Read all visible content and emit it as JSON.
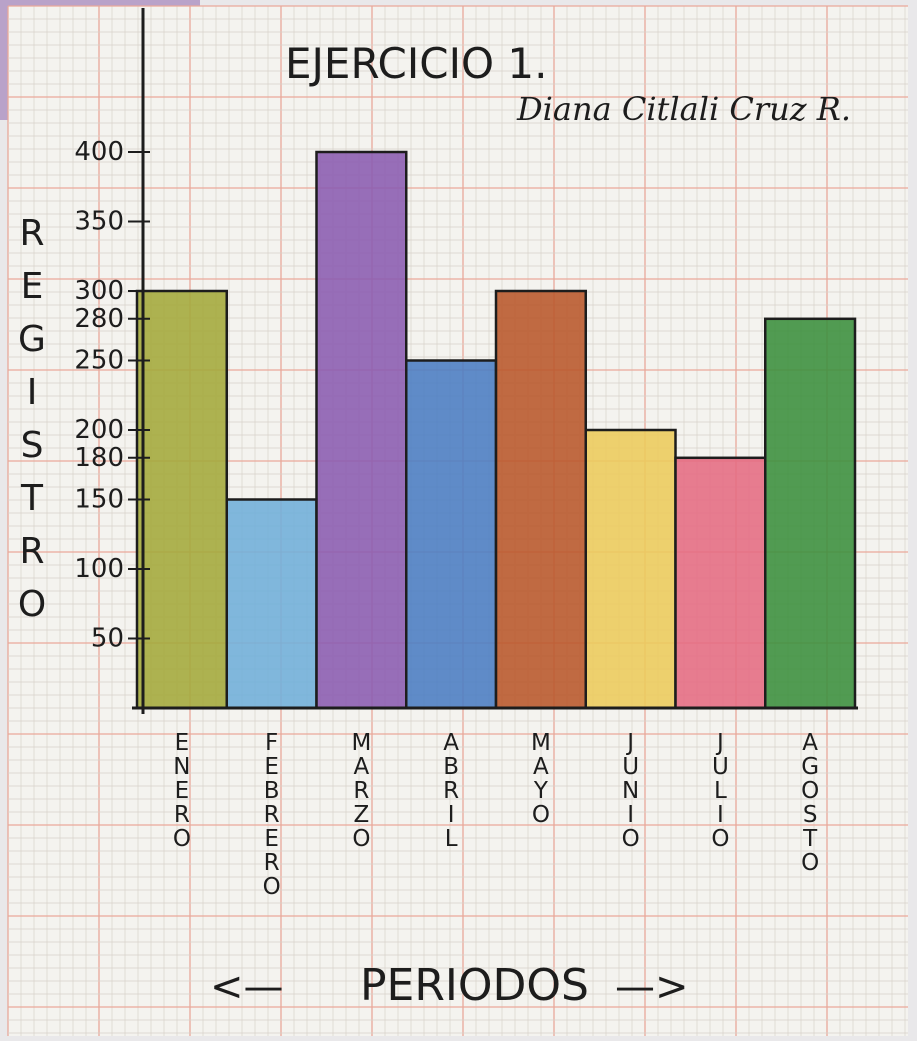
{
  "title": "EJERCICIO 1.",
  "author": "Diana Citlali Cruz R.",
  "chart_data": {
    "type": "bar",
    "title": "EJERCICIO 1.",
    "ylabel": "REGISTRO",
    "xlabel": "PERIODOS",
    "xlabel_left_arrow": "<—",
    "xlabel_right_arrow": "—>",
    "ylim": [
      0,
      400
    ],
    "yticks": [
      "50",
      "100",
      "150",
      "180",
      "200",
      "250",
      "280",
      "300",
      "350",
      "400"
    ],
    "ytick_values": [
      50,
      100,
      150,
      180,
      200,
      250,
      280,
      300,
      350,
      400
    ],
    "categories": [
      "ENERO",
      "FEBRERO",
      "MARZO",
      "ABRIL",
      "MAYO",
      "JUNIO",
      "JULIO",
      "AGOSTO"
    ],
    "values": [
      300,
      150,
      400,
      250,
      300,
      200,
      180,
      280
    ],
    "bar_colors": [
      "#a3a83a",
      "#6faed9",
      "#8a5bb0",
      "#4a7cc3",
      "#b8562a",
      "#eccb5b",
      "#e56b82",
      "#3a8e3c"
    ],
    "grid": true
  }
}
